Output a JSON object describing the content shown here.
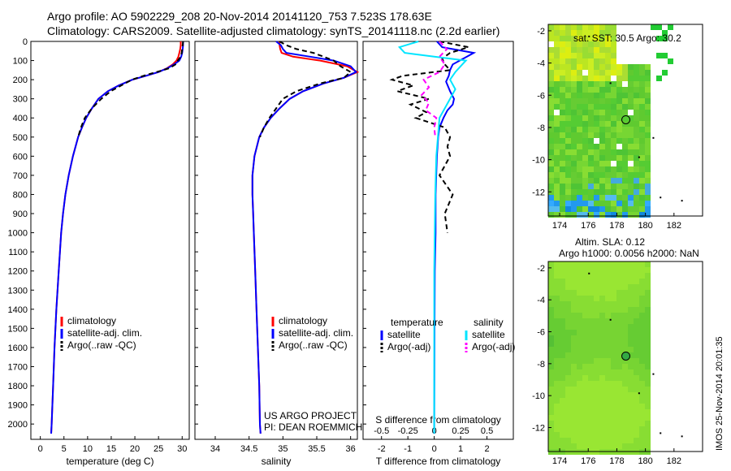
{
  "header": {
    "line1": "Argo profile: AO 5902229_208 20-Nov-2014 20141120_753 7.523S 178.63E",
    "line2": "Climatology: CARS2009. Satellite-adjusted climatology: synTS_20141118.nc (2.2d earlier)"
  },
  "colors": {
    "climatology": "#ff0000",
    "satellite": "#0000ff",
    "argo": "#000000",
    "cyan": "#00e5ff",
    "magenta": "#ff00ff"
  },
  "chart_data": [
    {
      "type": "line",
      "name": "temperature",
      "xlabel": "temperature (deg C)",
      "ylabel": "",
      "xlim": [
        -2,
        31.5
      ],
      "ylim": [
        2080,
        0
      ],
      "xticks": [
        0,
        5,
        10,
        15,
        20,
        25,
        30
      ],
      "yticks": [
        0,
        100,
        200,
        300,
        400,
        500,
        600,
        700,
        800,
        900,
        1000,
        1100,
        1200,
        1300,
        1400,
        1500,
        1600,
        1700,
        1800,
        1900,
        2000
      ],
      "legend": [
        "climatology",
        "satellite-adj. clim.",
        "Argo(..raw -QC)"
      ],
      "series": [
        {
          "name": "climatology",
          "depth": [
            0,
            20,
            40,
            60,
            80,
            100,
            120,
            140,
            160,
            180,
            200,
            230,
            260,
            300,
            350,
            400,
            450,
            500,
            600,
            700,
            800,
            900,
            1000,
            1200,
            1400,
            1600,
            1800,
            2000,
            2050
          ],
          "values": [
            29.7,
            29.7,
            29.6,
            29.4,
            29.2,
            28.8,
            28.0,
            26.8,
            25.0,
            22.3,
            19.5,
            16.6,
            14.3,
            12.3,
            10.9,
            9.7,
            8.8,
            8.0,
            6.9,
            6.0,
            5.3,
            4.8,
            4.4,
            3.9,
            3.4,
            3.0,
            2.7,
            2.4,
            2.3
          ]
        },
        {
          "name": "satellite-adj. clim.",
          "depth": [
            0,
            20,
            40,
            60,
            80,
            100,
            120,
            140,
            160,
            180,
            200,
            230,
            260,
            300,
            350,
            400,
            450,
            500,
            600,
            700,
            800,
            900,
            1000,
            1200,
            1400,
            1600,
            1800,
            2000,
            2050
          ],
          "values": [
            30.2,
            30.2,
            30.1,
            30.0,
            29.8,
            29.4,
            28.3,
            26.9,
            25.0,
            22.3,
            19.5,
            16.6,
            14.3,
            12.3,
            10.9,
            9.7,
            8.8,
            8.0,
            6.9,
            6.0,
            5.3,
            4.8,
            4.4,
            3.9,
            3.4,
            3.0,
            2.7,
            2.4,
            2.3
          ]
        },
        {
          "name": "Argo(..raw -QC)",
          "depth": [
            0,
            20,
            40,
            60,
            80,
            100,
            120,
            140,
            160,
            180,
            200,
            230,
            260,
            300,
            350,
            400,
            450,
            500
          ],
          "values": [
            30.2,
            30.1,
            30.0,
            29.9,
            29.7,
            29.1,
            28.6,
            27.3,
            24.6,
            21.8,
            19.4,
            17.1,
            14.9,
            12.9,
            10.9,
            9.4,
            8.6,
            8.0
          ]
        }
      ]
    },
    {
      "type": "line",
      "name": "salinity",
      "xlabel": "salinity",
      "ylabel": "",
      "xlim": [
        33.7,
        36.1
      ],
      "ylim": [
        2080,
        0
      ],
      "xticks": [
        34,
        34.5,
        35,
        35.5,
        36
      ],
      "legend": [
        "climatology",
        "satellite-adj. clim.",
        "Argo(..raw -QC)"
      ],
      "annotation": [
        "US ARGO PROJECT",
        "PI: DEAN ROEMMICH"
      ],
      "series": [
        {
          "name": "climatology",
          "depth": [
            0,
            20,
            40,
            60,
            80,
            100,
            130,
            160,
            190,
            220,
            260,
            300,
            350,
            400,
            450,
            500,
            600,
            700,
            800,
            900,
            1000,
            1200,
            1400,
            1600,
            1800,
            2000,
            2050
          ],
          "values": [
            34.95,
            34.95,
            34.96,
            34.98,
            35.15,
            35.55,
            35.95,
            36.1,
            35.9,
            35.6,
            35.3,
            35.1,
            34.95,
            34.82,
            34.72,
            34.65,
            34.58,
            34.55,
            34.55,
            34.56,
            34.57,
            34.59,
            34.61,
            34.63,
            34.65,
            34.66,
            34.67
          ]
        },
        {
          "name": "satellite-adj. clim.",
          "depth": [
            0,
            20,
            40,
            60,
            80,
            100,
            130,
            160,
            190,
            220,
            260,
            300,
            350,
            400,
            450,
            500,
            600,
            700,
            800,
            900,
            1000,
            1200,
            1400,
            1600,
            1800,
            2000,
            2050
          ],
          "values": [
            34.9,
            34.97,
            35.0,
            35.05,
            35.4,
            35.75,
            36.0,
            36.08,
            35.9,
            35.6,
            35.3,
            35.1,
            34.95,
            34.82,
            34.72,
            34.65,
            34.58,
            34.55,
            34.55,
            34.56,
            34.57,
            34.59,
            34.61,
            34.63,
            34.65,
            34.66,
            34.67
          ]
        },
        {
          "name": "Argo(..raw -QC)",
          "depth": [
            0,
            20,
            40,
            60,
            80,
            100,
            130,
            160,
            190,
            220,
            260,
            300,
            350,
            400,
            450,
            500
          ],
          "values": [
            34.95,
            35.05,
            35.2,
            35.45,
            35.6,
            35.75,
            35.85,
            36.0,
            35.9,
            35.55,
            35.2,
            35.0,
            34.9,
            34.8,
            34.72,
            34.66
          ]
        }
      ]
    },
    {
      "type": "line",
      "name": "differences",
      "xlabel": "T difference from climatology",
      "xlabel_top": "S difference from climatology",
      "xlim": [
        -2.7,
        3.0
      ],
      "ylim": [
        2080,
        0
      ],
      "xticks": [
        -2,
        -1,
        0,
        1,
        2
      ],
      "xticks_top": [
        -0.5,
        -0.25,
        0,
        0.25,
        0.5
      ],
      "xticks_top_labels": [
        "-0.5",
        "-0.25",
        "0",
        "0.25",
        "0.5"
      ],
      "legend_headers": [
        "temperature",
        "salinity"
      ],
      "legend": [
        "satellite",
        "Argo(-adj)",
        "satellite",
        "Argo(-adj)"
      ],
      "series": [
        {
          "name": "temperature satellite",
          "depth": [
            0,
            30,
            60,
            90,
            120,
            150,
            180,
            210,
            260,
            300,
            330,
            360,
            400,
            450,
            500,
            600,
            800,
            1000,
            1200,
            1500,
            2050
          ],
          "values": [
            0.1,
            0.3,
            1.5,
            1.1,
            0.7,
            0.6,
            0.55,
            0.45,
            0.6,
            0.75,
            0.7,
            0.5,
            0.35,
            0.2,
            0.15,
            0.1,
            0.05,
            0.05,
            0.02,
            0.01,
            0.0
          ]
        },
        {
          "name": "temperature Argo(-adj)",
          "depth": [
            0,
            30,
            60,
            90,
            120,
            150,
            180,
            200,
            230,
            260,
            300,
            330,
            370,
            400,
            450,
            500,
            550,
            600,
            700,
            800,
            900,
            1000
          ],
          "values": [
            0.2,
            1.3,
            0.6,
            0.3,
            0.4,
            0.6,
            -1.2,
            -1.6,
            -0.8,
            -1.4,
            -0.2,
            -0.9,
            -0.3,
            -0.7,
            0.4,
            0.6,
            0.5,
            0.6,
            0.2,
            0.7,
            0.4,
            0.5
          ]
        },
        {
          "name": "salinity satellite",
          "depth": [
            0,
            30,
            60,
            80,
            100,
            130,
            160,
            200,
            250,
            300,
            400,
            600,
            800,
            1200,
            1600,
            2050
          ],
          "values": [
            -0.15,
            -0.33,
            -0.28,
            0.0,
            0.3,
            0.25,
            0.2,
            0.15,
            0.2,
            0.15,
            0.05,
            0.02,
            0.01,
            0.0,
            0.0,
            0.0
          ]
        },
        {
          "name": "salinity Argo(-adj)",
          "depth": [
            0,
            40,
            80,
            120,
            160,
            200,
            240,
            280,
            320,
            360,
            400,
            450,
            500
          ],
          "values": [
            0.05,
            0.12,
            0.05,
            0.1,
            0.05,
            -0.1,
            -0.05,
            -0.12,
            -0.05,
            -0.08,
            0.02,
            0.0,
            0.01
          ]
        }
      ]
    }
  ],
  "maps": [
    {
      "title": "sat. SST: 30.5 Argo: 30.2",
      "xticks": [
        174,
        176,
        178,
        180,
        182
      ],
      "yticks": [
        -2,
        -4,
        -6,
        -8,
        -10,
        -12
      ],
      "lon": [
        173.2,
        184.0
      ],
      "lat": [
        -1.6,
        -13.5
      ],
      "argo_position": {
        "lon": 178.63,
        "lat": -7.523
      }
    },
    {
      "title_line1": "Altim. SLA: 0.12",
      "title_line2": "Argo h1000: 0.0056 h2000: NaN",
      "xticks": [
        174,
        176,
        178,
        180,
        182
      ],
      "yticks": [
        -2,
        -4,
        -6,
        -8,
        -10,
        -12
      ],
      "lon": [
        173.2,
        184.0
      ],
      "lat": [
        -1.6,
        -13.5
      ],
      "argo_position": {
        "lon": 178.63,
        "lat": -7.523
      }
    }
  ],
  "footer": {
    "side_label": "IMOS 25-Nov-2014 20:01:35"
  }
}
